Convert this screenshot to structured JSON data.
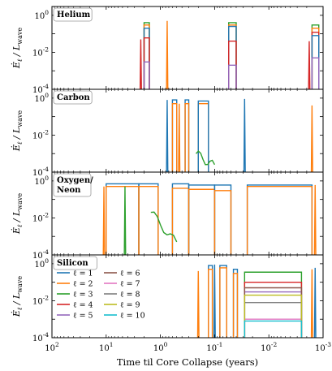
{
  "chart_data": {
    "type": "line",
    "x_axis": {
      "label": "Time til Core Collapse (years)",
      "scale": "log",
      "reversed": true,
      "range": [
        100,
        0.001
      ],
      "ticks": [
        {
          "value": 100,
          "label": "10",
          "exp": "2"
        },
        {
          "value": 10,
          "label": "10",
          "exp": "1"
        },
        {
          "value": 1,
          "label": "10",
          "exp": "0"
        },
        {
          "value": 0.1,
          "label": "10",
          "exp": "-1"
        },
        {
          "value": 0.01,
          "label": "10",
          "exp": "-2"
        },
        {
          "value": 0.001,
          "label": "10",
          "exp": "-3"
        }
      ]
    },
    "y_axis": {
      "label_main": "Ė",
      "label_sub": "ℓ",
      "label_rest": " / L",
      "label_rest_sub": "wave",
      "scale": "log",
      "range": [
        0.0001,
        3
      ],
      "ticks": [
        {
          "value": 1,
          "label": "10",
          "exp": "0"
        },
        {
          "value": 0.01,
          "label": "10",
          "exp": "-2"
        },
        {
          "value": 0.0001,
          "label": "10",
          "exp": "-4"
        }
      ]
    },
    "grid": false,
    "legend": {
      "placement": "lower-left of Silicon panel",
      "entries": [
        {
          "label": "ℓ = 1",
          "color": "#1f77b4"
        },
        {
          "label": "ℓ = 2",
          "color": "#ff7f0e"
        },
        {
          "label": "ℓ = 3",
          "color": "#2ca02c"
        },
        {
          "label": "ℓ = 4",
          "color": "#d62728"
        },
        {
          "label": "ℓ = 5",
          "color": "#9467bd"
        },
        {
          "label": "ℓ = 6",
          "color": "#8c564b"
        },
        {
          "label": "ℓ = 7",
          "color": "#e377c2"
        },
        {
          "label": "ℓ = 8",
          "color": "#7f7f7f"
        },
        {
          "label": "ℓ = 9",
          "color": "#bcbd22"
        },
        {
          "label": "ℓ = 10",
          "color": "#17becf"
        }
      ]
    },
    "panels": [
      {
        "title": "Helium",
        "bursts": [
          {
            "x0": 2.0,
            "x1": 1.6,
            "levels": [
              {
                "l": 3,
                "y": 0.4
              },
              {
                "l": 2,
                "y": 0.3
              },
              {
                "l": 1,
                "y": 0.2
              },
              {
                "l": 4,
                "y": 0.06
              },
              {
                "l": 5,
                "y": 0.003
              }
            ]
          },
          {
            "x0": 0.055,
            "x1": 0.04,
            "levels": [
              {
                "l": 3,
                "y": 0.4
              },
              {
                "l": 2,
                "y": 0.3
              },
              {
                "l": 1,
                "y": 0.25
              },
              {
                "l": 4,
                "y": 0.04
              },
              {
                "l": 5,
                "y": 0.002
              }
            ]
          },
          {
            "x0": 0.0016,
            "x1": 0.0012,
            "levels": [
              {
                "l": 3,
                "y": 0.3
              },
              {
                "l": 2,
                "y": 0.2
              },
              {
                "l": 4,
                "y": 0.12
              },
              {
                "l": 1,
                "y": 0.08
              },
              {
                "l": 5,
                "y": 0.005
              }
            ]
          }
        ],
        "spikes": [
          {
            "x": 2.3,
            "l": 4,
            "y": 0.05
          },
          {
            "x": 0.75,
            "l": 2,
            "y": 0.5
          },
          {
            "x": 0.0018,
            "l": 4,
            "y": 0.04
          }
        ]
      },
      {
        "title": "Carbon",
        "bursts": [
          {
            "x0": 0.6,
            "x1": 0.5,
            "levels": [
              {
                "l": 1,
                "y": 0.8
              },
              {
                "l": 2,
                "y": 0.5
              }
            ]
          },
          {
            "x0": 0.35,
            "x1": 0.3,
            "levels": [
              {
                "l": 1,
                "y": 0.8
              },
              {
                "l": 2,
                "y": 0.5
              }
            ]
          },
          {
            "x0": 0.2,
            "x1": 0.13,
            "levels": [
              {
                "l": 2,
                "y": 0.5
              },
              {
                "l": 1,
                "y": 0.7
              }
            ]
          }
        ],
        "spikes": [
          {
            "x": 0.75,
            "l": 1,
            "y": 0.8
          },
          {
            "x": 0.45,
            "l": 2,
            "y": 0.5
          },
          {
            "x": 0.028,
            "l": 1,
            "y": 0.9
          },
          {
            "x": 0.0016,
            "l": 2,
            "y": 0.4
          }
        ],
        "decay": {
          "x0": 0.22,
          "x1": 0.1,
          "l": 3,
          "y0": 0.001,
          "y1": 0.0002
        }
      },
      {
        "title": "Oxygen/ Neon",
        "title_lines": [
          "Oxygen/",
          "Neon"
        ],
        "bursts": [
          {
            "x0": 10,
            "x1": 2.5,
            "levels": [
              {
                "l": 1,
                "y": 0.7
              },
              {
                "l": 2,
                "y": 0.5
              }
            ]
          },
          {
            "x0": 2.5,
            "x1": 1.1,
            "levels": [
              {
                "l": 1,
                "y": 0.7
              },
              {
                "l": 2,
                "y": 0.5
              }
            ]
          },
          {
            "x0": 0.6,
            "x1": 0.3,
            "levels": [
              {
                "l": 1,
                "y": 0.7
              },
              {
                "l": 2,
                "y": 0.4
              }
            ]
          },
          {
            "x0": 0.3,
            "x1": 0.1,
            "levels": [
              {
                "l": 1,
                "y": 0.6
              },
              {
                "l": 2,
                "y": 0.35
              }
            ]
          },
          {
            "x0": 0.1,
            "x1": 0.05,
            "levels": [
              {
                "l": 1,
                "y": 0.6
              },
              {
                "l": 2,
                "y": 0.3
              }
            ]
          },
          {
            "x0": 0.025,
            "x1": 0.0016,
            "levels": [
              {
                "l": 1,
                "y": 0.6
              },
              {
                "l": 2,
                "y": 0.5
              }
            ]
          }
        ],
        "spikes": [
          {
            "x": 11,
            "l": 2,
            "y": 0.5
          },
          {
            "x": 4.5,
            "l": 3,
            "y": 0.5
          },
          {
            "x": 0.0014,
            "l": 2,
            "y": 0.6
          }
        ],
        "decay": {
          "x0": 1.5,
          "x1": 0.5,
          "l": 3,
          "y0": 0.02,
          "y1": 0.0004
        }
      },
      {
        "title": "Silicon",
        "bursts": [
          {
            "x0": 0.13,
            "x1": 0.11,
            "levels": [
              {
                "l": 1,
                "y": 0.8
              },
              {
                "l": 2,
                "y": 0.5
              }
            ]
          },
          {
            "x0": 0.08,
            "x1": 0.06,
            "levels": [
              {
                "l": 1,
                "y": 0.8
              },
              {
                "l": 2,
                "y": 0.6
              }
            ]
          },
          {
            "x0": 0.045,
            "x1": 0.038,
            "levels": [
              {
                "l": 1,
                "y": 0.5
              },
              {
                "l": 2,
                "y": 0.3
              }
            ]
          },
          {
            "x0": 0.028,
            "x1": 0.0025,
            "levels": [
              {
                "l": 3,
                "y": 0.35
              },
              {
                "l": 4,
                "y": 0.1
              },
              {
                "l": 5,
                "y": 0.03
              },
              {
                "l": 6,
                "y": 0.05
              },
              {
                "l": 7,
                "y": 0.001
              },
              {
                "l": 8,
                "y": 0.008
              },
              {
                "l": 9,
                "y": 0.02
              },
              {
                "l": 10,
                "y": 0.0008
              }
            ]
          }
        ],
        "spikes": [
          {
            "x": 0.2,
            "l": 2,
            "y": 0.4
          },
          {
            "x": 0.1,
            "l": 1,
            "y": 0.9
          },
          {
            "x": 0.0016,
            "l": 2,
            "y": 0.5
          },
          {
            "x": 0.0014,
            "l": 1,
            "y": 0.6
          }
        ]
      }
    ]
  }
}
